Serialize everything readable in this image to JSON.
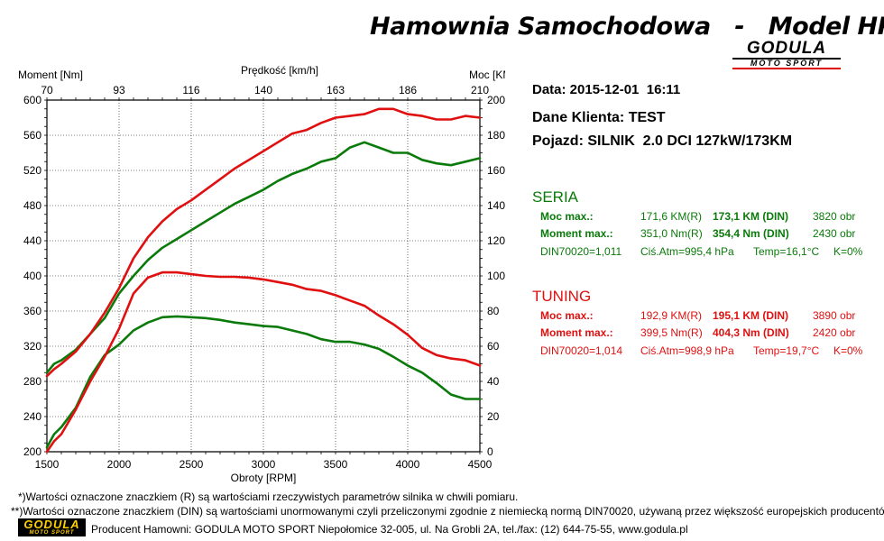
{
  "header": {
    "title": "Hamownia Samochodowa   -   Model HPS-",
    "brand_main": "GODULA",
    "brand_sub": "MOTO SPORT"
  },
  "info": {
    "date": "Data: 2015-12-01  16:11",
    "client": "Dane Klienta: TEST",
    "vehicle": "Pojazd: SILNIK  2.0 DCI 127kW/173KM"
  },
  "seria": {
    "title": "SERIA",
    "power_label": "Moc max.:",
    "power_r": "171,6 KM(R)",
    "power_din": "173,1 KM (DIN)",
    "power_rpm": "3820 obr",
    "torque_label": "Moment max.:",
    "torque_r": "351,0 Nm(R)",
    "torque_din": "354,4 Nm (DIN)",
    "torque_rpm": "2430 obr",
    "din_factor": "DIN70020=1,011",
    "atm": "Ciś.Atm=995,4 hPa",
    "temp": "Temp=16,1°C",
    "k": "K=0%"
  },
  "tuning": {
    "title": "TUNING",
    "power_label": "Moc max.:",
    "power_r": "192,9 KM(R)",
    "power_din": "195,1 KM (DIN)",
    "power_rpm": "3890 obr",
    "torque_label": "Moment max.:",
    "torque_r": "399,5 Nm(R)",
    "torque_din": "404,3 Nm (DIN)",
    "torque_rpm": "2420 obr",
    "din_factor": "DIN70020=1,014",
    "atm": "Ciś.Atm=998,9 hPa",
    "temp": "Temp=19,7°C",
    "k": "K=0%"
  },
  "footer": {
    "note1": "*)Wartości oznaczone znaczkiem (R) są wartościami rzeczywistych parametrów silnika w chwili pomiaru.",
    "note2": "**)Wartości oznaczone znaczkiem (DIN) są wartościami unormowanymi czyli przeliczonymi zgodnie z niemiecką normą DIN70020, używaną przez większość europejskich producentów.",
    "producer": "Producent Hamowni: GODULA MOTO SPORT Niepołomice 32-005, ul. Na Grobli 2A, tel./fax: (12) 644-75-55, www.godula.pl",
    "logo_main": "GODULA",
    "logo_sub": "MOTO SPORT"
  },
  "colors": {
    "seria": "#0a7a0a",
    "tuning": "#e01010",
    "grid": "#000000"
  },
  "chart_data": {
    "type": "line",
    "xlabel": "Obroty [RPM]",
    "x2label": "Prędkość [km/h]",
    "ylabel_left": "Moment [Nm]",
    "ylabel_right": "Moc [KM]",
    "xlim": [
      1500,
      4500
    ],
    "ylim_left": [
      200,
      600
    ],
    "ylim_right": [
      0,
      200
    ],
    "x_ticks": [
      "1500",
      "2000",
      "2500",
      "3000",
      "3500",
      "4000",
      "4500"
    ],
    "x2_ticks": [
      "70",
      "93",
      "116",
      "140",
      "163",
      "186",
      "210"
    ],
    "y_left_ticks": [
      "200",
      "240",
      "280",
      "320",
      "360",
      "400",
      "440",
      "480",
      "520",
      "560",
      "600"
    ],
    "y_right_ticks": [
      "0",
      "20",
      "40",
      "60",
      "80",
      "100",
      "120",
      "140",
      "160",
      "180",
      "200"
    ],
    "grid": true,
    "series": [
      {
        "name": "SERIA",
        "kind": "torque",
        "axis": "left",
        "color": "#0a7a0a",
        "x": [
          1500,
          1550,
          1600,
          1700,
          1800,
          1900,
          2000,
          2100,
          2200,
          2300,
          2400,
          2500,
          2600,
          2700,
          2800,
          2900,
          3000,
          3100,
          3200,
          3300,
          3400,
          3500,
          3600,
          3700,
          3800,
          3900,
          4000,
          4100,
          4200,
          4300,
          4400,
          4500
        ],
        "y": [
          205,
          220,
          228,
          250,
          285,
          310,
          322,
          338,
          347,
          353,
          354,
          353,
          352,
          350,
          347,
          345,
          343,
          342,
          338,
          334,
          328,
          325,
          325,
          322,
          317,
          308,
          298,
          290,
          278,
          265,
          260,
          260
        ]
      },
      {
        "name": "TUNING",
        "kind": "torque",
        "axis": "left",
        "color": "#e01010",
        "x": [
          1500,
          1550,
          1600,
          1700,
          1800,
          1900,
          2000,
          2100,
          2200,
          2300,
          2400,
          2500,
          2600,
          2700,
          2800,
          2900,
          3000,
          3100,
          3200,
          3300,
          3400,
          3500,
          3600,
          3700,
          3800,
          3900,
          4000,
          4100,
          4200,
          4300,
          4400,
          4500
        ],
        "y": [
          200,
          212,
          220,
          248,
          280,
          308,
          340,
          380,
          398,
          404,
          404,
          402,
          400,
          399,
          399,
          398,
          396,
          393,
          390,
          385,
          383,
          378,
          372,
          366,
          355,
          345,
          333,
          318,
          310,
          306,
          304,
          298
        ]
      },
      {
        "name": "SERIA",
        "kind": "power",
        "axis": "right",
        "color": "#0a7a0a",
        "x": [
          1500,
          1550,
          1600,
          1700,
          1800,
          1900,
          2000,
          2100,
          2200,
          2300,
          2400,
          2500,
          2600,
          2700,
          2800,
          2900,
          3000,
          3100,
          3200,
          3300,
          3400,
          3500,
          3600,
          3700,
          3800,
          3900,
          4000,
          4100,
          4200,
          4300,
          4400,
          4500
        ],
        "y": [
          45,
          50,
          52,
          58,
          67,
          76,
          90,
          100,
          109,
          116,
          121,
          126,
          131,
          136,
          141,
          145,
          149,
          154,
          158,
          161,
          165,
          167,
          173,
          176,
          173,
          170,
          170,
          166,
          164,
          163,
          165,
          167
        ]
      },
      {
        "name": "TUNING",
        "kind": "power",
        "axis": "right",
        "color": "#e01010",
        "x": [
          1500,
          1550,
          1600,
          1700,
          1800,
          1900,
          2000,
          2100,
          2200,
          2300,
          2400,
          2500,
          2600,
          2700,
          2800,
          2900,
          3000,
          3100,
          3200,
          3300,
          3400,
          3500,
          3600,
          3700,
          3800,
          3900,
          4000,
          4100,
          4200,
          4300,
          4400,
          4500
        ],
        "y": [
          43,
          47,
          50,
          57,
          67,
          79,
          93,
          110,
          122,
          131,
          138,
          143,
          149,
          155,
          161,
          166,
          171,
          176,
          181,
          183,
          187,
          190,
          191,
          192,
          195,
          195,
          192,
          191,
          189,
          189,
          191,
          190
        ]
      }
    ]
  }
}
